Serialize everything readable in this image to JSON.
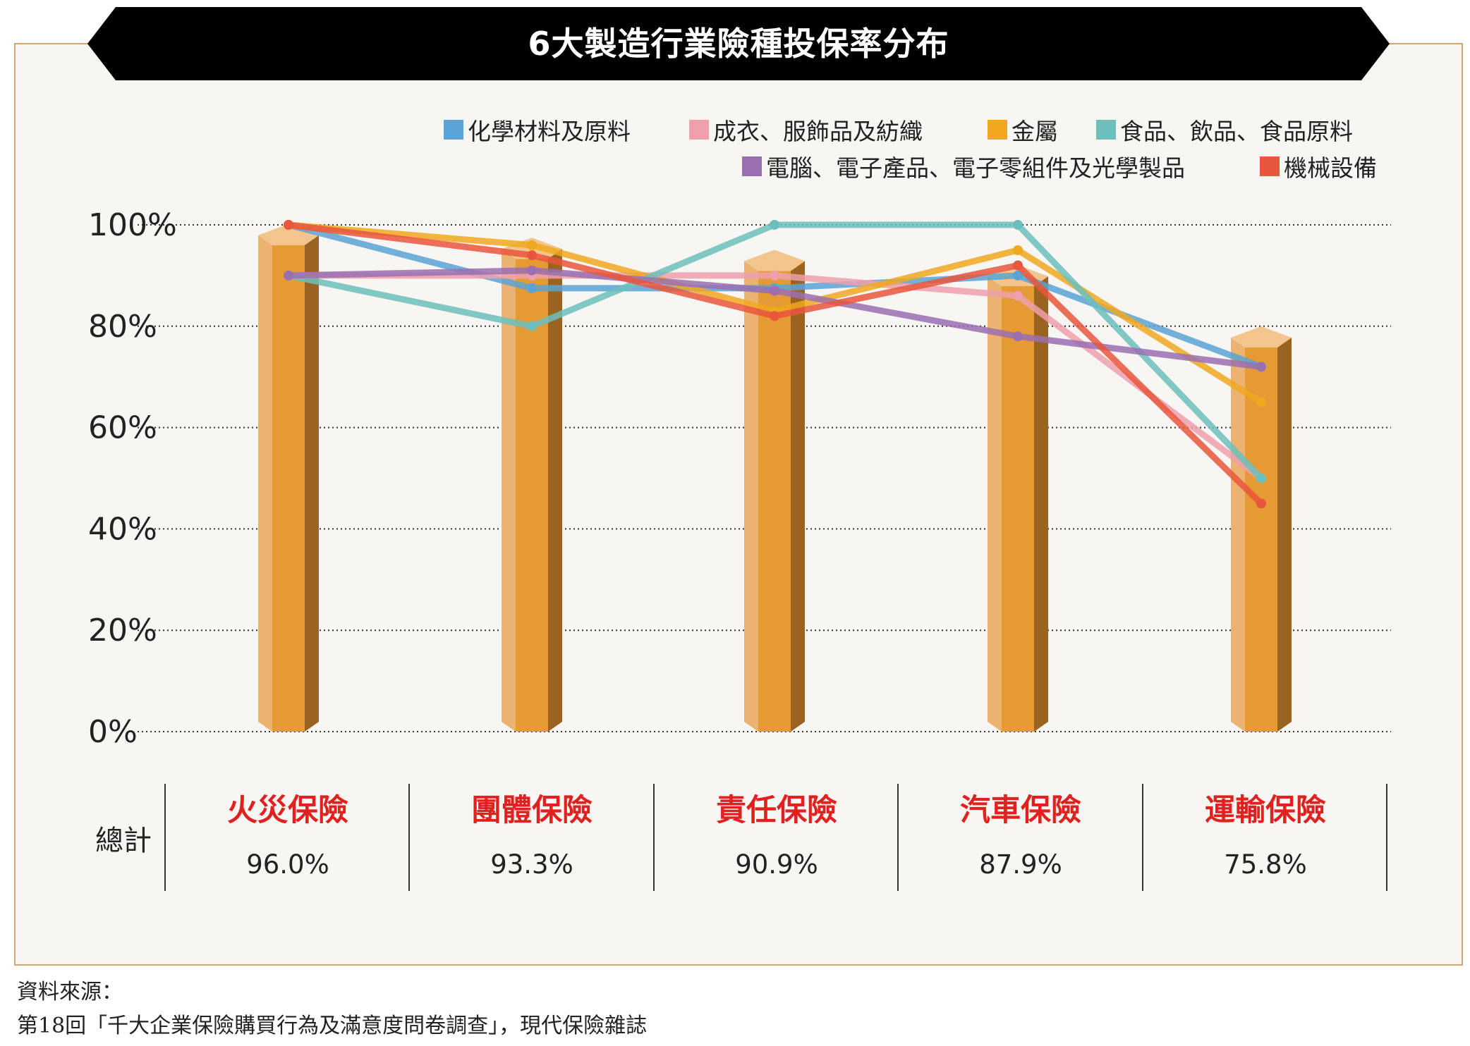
{
  "title": "6大製造行業險種投保率分布",
  "chart_data": {
    "type": "bar",
    "categories": [
      "火災保險",
      "團體保險",
      "責任保險",
      "汽車保險",
      "運輸保險"
    ],
    "bar_series": {
      "values": [
        96.0,
        93.3,
        90.9,
        87.9,
        75.8
      ]
    },
    "series": [
      {
        "name": "化學材料及原料",
        "color": "#5ba3d4",
        "values": [
          100,
          87.5,
          87.5,
          90,
          72
        ]
      },
      {
        "name": "成衣、服飾品及紡織",
        "color": "#efa0ac",
        "values": [
          90,
          90,
          90,
          86,
          50
        ]
      },
      {
        "name": "金屬",
        "color": "#f0a820",
        "values": [
          100,
          96,
          83,
          95,
          65
        ]
      },
      {
        "name": "食品、飲品、食品原料",
        "color": "#6cbfbc",
        "values": [
          90,
          80,
          100,
          100,
          50
        ]
      },
      {
        "name": "電腦、電子產品、電子零組件及光學製品",
        "color": "#9a6fb0",
        "values": [
          90,
          91,
          87,
          78,
          72
        ]
      },
      {
        "name": "機械設備",
        "color": "#e8563c",
        "values": [
          100,
          94,
          82,
          92,
          45
        ]
      }
    ],
    "ylim": [
      0,
      100
    ],
    "yticks": [
      "0%",
      "20%",
      "40%",
      "60%",
      "80%",
      "100%"
    ],
    "grid": true,
    "legend_position": "top-right"
  },
  "summary": {
    "label": "總計",
    "items": [
      {
        "name": "火災保險",
        "value": "96.0%"
      },
      {
        "name": "團體保險",
        "value": "93.3%"
      },
      {
        "name": "責任保險",
        "value": "90.9%"
      },
      {
        "name": "汽車保險",
        "value": "87.9%"
      },
      {
        "name": "運輸保險",
        "value": "75.8%"
      }
    ]
  },
  "source": {
    "line1": "資料來源：",
    "line2": "第18回「千大企業保險購買行為及滿意度問卷調查」，現代保險雜誌"
  }
}
